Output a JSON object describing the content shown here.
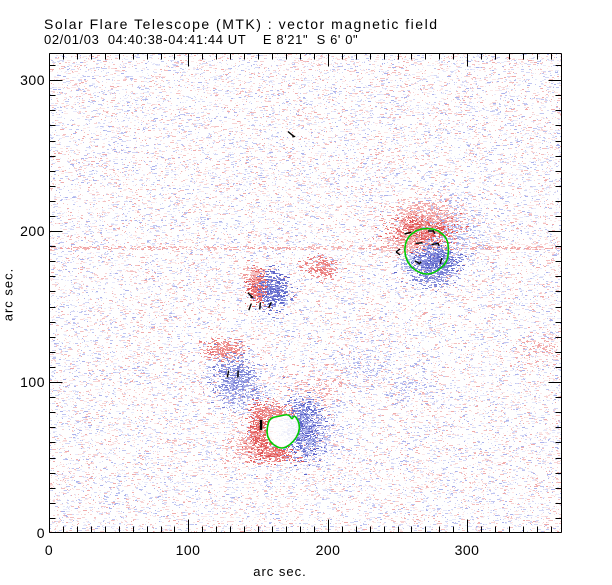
{
  "header": {
    "title": "Solar Flare Telescope (MTK) : vector magnetic field",
    "subtitle": "02/01/03  04:40:38-04:41:44 UT    E 8'21\"  S 6' 0\""
  },
  "axes": {
    "x": {
      "label": "arc sec.",
      "tick_labels": [
        "0",
        "100",
        "200",
        "300"
      ],
      "ticks": [
        0,
        100,
        200,
        300
      ],
      "minor_step": 10,
      "range": [
        0,
        368
      ]
    },
    "y": {
      "label": "arc sec.",
      "tick_labels": [
        "0",
        "100",
        "200",
        "300"
      ],
      "ticks": [
        0,
        100,
        200,
        300
      ],
      "minor_step": 10,
      "range": [
        0,
        318
      ]
    }
  },
  "colors": {
    "frame": "#000000",
    "background": "#ffffff",
    "contour_green": "#00cc00",
    "vector_black": "#000000",
    "positive_red": "#e06060",
    "negative_blue": "#7078d0"
  },
  "chart_data": {
    "type": "heatmap",
    "title": "Solar Flare Telescope (MTK) : vector magnetic field",
    "subtitle": "02/01/03  04:40:38-04:41:44 UT    E 8'21\"  S 6' 0\"",
    "xlabel": "arc sec.",
    "ylabel": "arc sec.",
    "xlim": [
      0,
      368
    ],
    "ylim": [
      0,
      318
    ],
    "grid": false,
    "legend": "none",
    "encoding": {
      "positive_polarity": "red speckle",
      "negative_polarity": "blue speckle",
      "contour": "green = sunspot boundary",
      "vectors": "black segments = transverse field"
    },
    "render": {
      "seed": 42,
      "noise_count": 30000,
      "noise_weights": [
        0.34,
        0.33,
        0.22,
        0.11
      ],
      "tick_minor_len": 6,
      "tick_major_len": 13
    },
    "palettes": {
      "noise_pos": [
        "#fce8e8",
        "#f8d4d4",
        "#f4bfbf",
        "#f0abab"
      ],
      "noise_neg": [
        "#e8eafb",
        "#d4d8f6",
        "#bfc5f1",
        "#abb2ec"
      ],
      "pos_core": [
        "#ec8383",
        "#e66c6c",
        "#df5555",
        "#f09a9a"
      ],
      "pos_mid": [
        "#f2a6a6",
        "#ee9191",
        "#e87878"
      ],
      "pos_light": [
        "#f7c6c6",
        "#f3b1b1",
        "#f0a2a2"
      ],
      "neg_core": [
        "#878ddb",
        "#7178d2",
        "#5c64c8",
        "#9aa0e2"
      ],
      "neg_mid": [
        "#a2a7e6",
        "#8d93dd",
        "#7880d4"
      ],
      "neg_light": [
        "#ccd0f4",
        "#b9bdee",
        "#aab0e9"
      ]
    },
    "artifact_rows": [
      {
        "y": 188.8,
        "n": 420,
        "palette": "pos_light"
      }
    ],
    "regions": [
      {
        "name": "upper-right-pos-core",
        "palette": "pos_core",
        "x": 269.2,
        "y": 200.0,
        "sx": 11,
        "sy": 6,
        "n": 950
      },
      {
        "name": "upper-right-pos-top",
        "palette": "pos_light",
        "x": 271.5,
        "y": 211.5,
        "sx": 13,
        "sy": 5,
        "n": 420
      },
      {
        "name": "upper-right-pos-left",
        "palette": "pos_light",
        "x": 257.0,
        "y": 193.0,
        "sx": 9,
        "sy": 5,
        "n": 260
      },
      {
        "name": "upper-right-neg-core",
        "palette": "neg_core",
        "x": 275.7,
        "y": 180.0,
        "sx": 8,
        "sy": 5,
        "n": 700
      },
      {
        "name": "upper-right-neg-halo",
        "palette": "neg_light",
        "x": 291.0,
        "y": 196.0,
        "sx": 13,
        "sy": 12,
        "n": 380
      },
      {
        "name": "upper-right-neg-south",
        "palette": "neg_mid",
        "x": 273.5,
        "y": 170.0,
        "sx": 8,
        "sy": 3.5,
        "n": 200
      },
      {
        "name": "upper-right-neg-west",
        "palette": "neg_light",
        "x": 257.0,
        "y": 179.5,
        "sx": 4,
        "sy": 3,
        "n": 90
      },
      {
        "name": "mid-pos",
        "palette": "pos_core",
        "x": 149.5,
        "y": 163.5,
        "sx": 3.5,
        "sy": 6,
        "n": 380
      },
      {
        "name": "mid-neg",
        "palette": "neg_core",
        "x": 160.5,
        "y": 161.5,
        "sx": 5.5,
        "sy": 6.5,
        "n": 480
      },
      {
        "name": "mid-pos-tail",
        "palette": "pos_light",
        "x": 146.0,
        "y": 171.0,
        "sx": 4,
        "sy": 3,
        "n": 80
      },
      {
        "name": "mid-east-pos-spot",
        "palette": "pos_mid",
        "x": 196.0,
        "y": 176.0,
        "sx": 6,
        "sy": 3.5,
        "n": 200
      },
      {
        "name": "lower-mid-pos",
        "palette": "pos_mid",
        "x": 125.0,
        "y": 121.0,
        "sx": 7,
        "sy": 3.5,
        "n": 260
      },
      {
        "name": "lower-mid-neg",
        "palette": "neg_mid",
        "x": 133.0,
        "y": 102.0,
        "sx": 8,
        "sy": 8,
        "n": 520
      },
      {
        "name": "lower-mid-neg-halo",
        "palette": "neg_light",
        "x": 138.0,
        "y": 92.0,
        "sx": 9,
        "sy": 6,
        "n": 180
      },
      {
        "name": "lower-mid-pos-halo",
        "palette": "pos_light",
        "x": 194.0,
        "y": 96.0,
        "sx": 11,
        "sy": 7,
        "n": 170
      },
      {
        "name": "bottom-pos-west",
        "palette": "pos_core",
        "x": 150.0,
        "y": 67.0,
        "sx": 4,
        "sy": 9,
        "n": 500
      },
      {
        "name": "bottom-pos-north",
        "palette": "pos_mid",
        "x": 161.5,
        "y": 80.0,
        "sx": 6.5,
        "sy": 2.5,
        "n": 200
      },
      {
        "name": "bottom-pos-south",
        "palette": "pos_core",
        "x": 162.0,
        "y": 52.5,
        "sx": 8,
        "sy": 3,
        "n": 300
      },
      {
        "name": "bottom-pos-halo",
        "palette": "pos_light",
        "x": 140.0,
        "y": 57.0,
        "sx": 7,
        "sy": 6,
        "n": 160
      },
      {
        "name": "bottom-neg-core",
        "palette": "neg_core",
        "x": 182.0,
        "y": 69.5,
        "sx": 6.5,
        "sy": 9.5,
        "n": 850
      },
      {
        "name": "bottom-neg-halo",
        "palette": "neg_light",
        "x": 186.0,
        "y": 68.0,
        "sx": 11,
        "sy": 12,
        "n": 400
      },
      {
        "name": "texture-pos-ne",
        "palette": "pos_light",
        "x": 355.0,
        "y": 122.0,
        "sx": 14,
        "sy": 5,
        "n": 130
      },
      {
        "name": "texture-neg-se",
        "palette": "neg_light",
        "x": 260.0,
        "y": 97.0,
        "sx": 10,
        "sy": 6,
        "n": 110
      },
      {
        "name": "texture-neg-s",
        "palette": "neg_light",
        "x": 228.0,
        "y": 111.0,
        "sx": 12,
        "sy": 6,
        "n": 100
      }
    ],
    "contours": [
      {
        "name": "sunspot-upper-right",
        "fill": false,
        "points": [
          [
            271.2,
            202.1
          ],
          [
            279.1,
            200.7
          ],
          [
            285.5,
            195.4
          ],
          [
            286.9,
            187.5
          ],
          [
            285.5,
            179.5
          ],
          [
            279.1,
            173.6
          ],
          [
            271.2,
            170.9
          ],
          [
            262.6,
            173.6
          ],
          [
            256.8,
            179.5
          ],
          [
            254.7,
            187.5
          ],
          [
            256.8,
            195.4
          ],
          [
            263.3,
            200.7
          ]
        ]
      },
      {
        "name": "sunspot-bottom",
        "fill": true,
        "points": [
          [
            156.4,
            70.2
          ],
          [
            158.5,
            76.2
          ],
          [
            165.7,
            77.5
          ],
          [
            172.2,
            78.8
          ],
          [
            174.3,
            74.9
          ],
          [
            175.8,
            78.2
          ],
          [
            178.6,
            74.9
          ],
          [
            180.1,
            69.6
          ],
          [
            177.9,
            63.6
          ],
          [
            172.9,
            58.3
          ],
          [
            167.1,
            55.6
          ],
          [
            160.7,
            58.3
          ],
          [
            156.4,
            63.6
          ]
        ]
      }
    ],
    "vectors": [
      {
        "x": 257.5,
        "y": 198.7,
        "a": 15,
        "l": 7
      },
      {
        "x": 265.4,
        "y": 192.1,
        "a": 5,
        "l": 7
      },
      {
        "x": 274.0,
        "y": 200.1,
        "a": 0,
        "l": 6
      },
      {
        "x": 276.2,
        "y": 199.2,
        "a": -65,
        "l": 3
      },
      {
        "x": 276.9,
        "y": 191.5,
        "a": 10,
        "l": 7
      },
      {
        "x": 279.4,
        "y": 191.3,
        "a": -60,
        "l": 3
      },
      {
        "x": 250.4,
        "y": 187.2,
        "a": 35,
        "l": 5
      },
      {
        "x": 250.4,
        "y": 185.2,
        "a": -35,
        "l": 5
      },
      {
        "x": 264.0,
        "y": 179.5,
        "a": -30,
        "l": 5
      },
      {
        "x": 266.1,
        "y": 178.8,
        "a": 50,
        "l": 4
      },
      {
        "x": 281.2,
        "y": 180.2,
        "a": 75,
        "l": 6
      },
      {
        "x": 173.6,
        "y": 264.3,
        "a": -40,
        "l": 8
      },
      {
        "x": 175.6,
        "y": 262.6,
        "a": 10,
        "l": 3
      },
      {
        "x": 144.2,
        "y": 157.7,
        "a": -45,
        "l": 6
      },
      {
        "x": 145.5,
        "y": 156.2,
        "a": 0,
        "l": 3
      },
      {
        "x": 144.2,
        "y": 149.7,
        "a": 70,
        "l": 7
      },
      {
        "x": 151.4,
        "y": 150.4,
        "a": 85,
        "l": 7
      },
      {
        "x": 158.5,
        "y": 151.0,
        "a": 65,
        "l": 6
      },
      {
        "x": 128.4,
        "y": 105.3,
        "a": 80,
        "l": 7
      },
      {
        "x": 135.6,
        "y": 105.3,
        "a": 88,
        "l": 7
      },
      {
        "x": 152.1,
        "y": 71.6,
        "a": 90,
        "l": 10,
        "w": 2.5
      }
    ]
  }
}
